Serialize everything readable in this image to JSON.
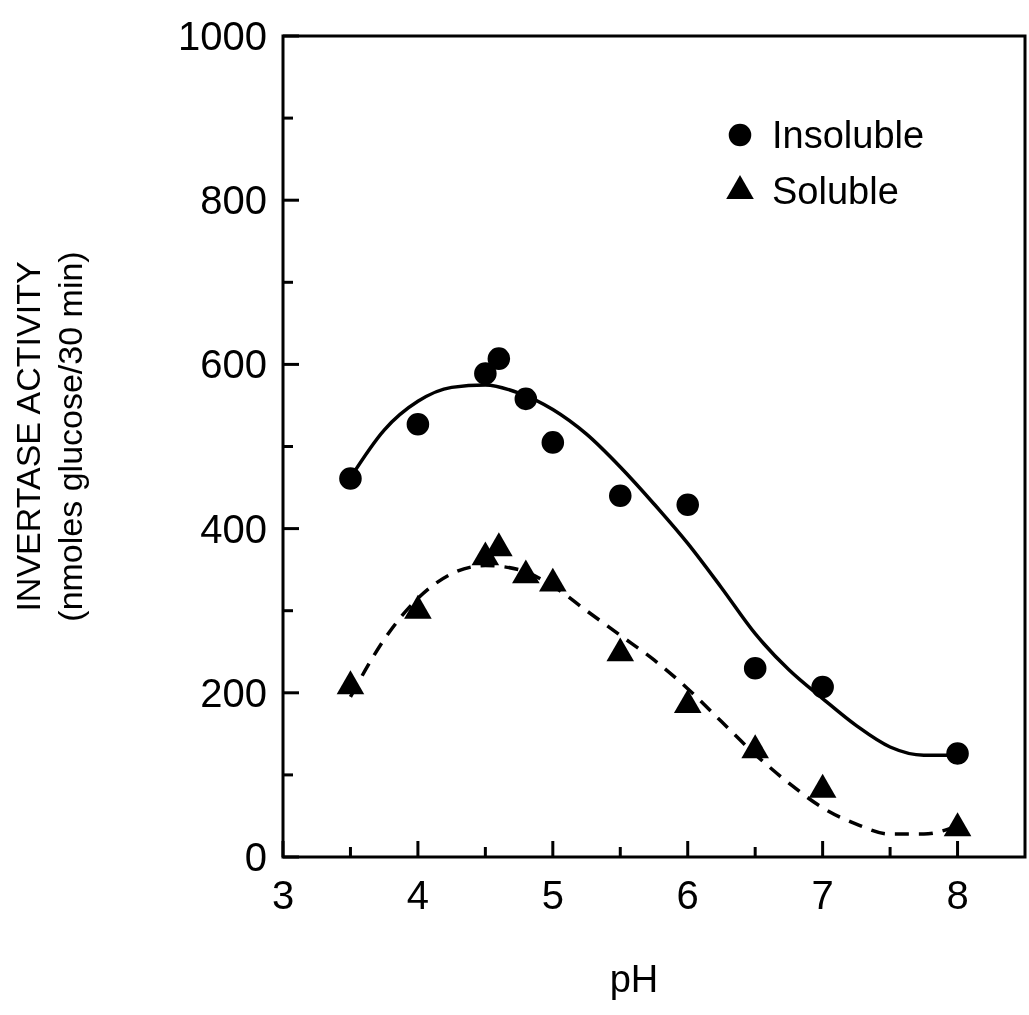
{
  "chart_data": {
    "type": "scatter",
    "xlabel": "pH",
    "ylabel": "INVERTASE ACTIVITY\n(nmoles glucose/30 min)",
    "xlim": [
      3,
      8.5
    ],
    "ylim": [
      0,
      1000
    ],
    "xticks": [
      3,
      {
        "value": 3.5,
        "label": null
      },
      4,
      {
        "value": 4.5,
        "label": null
      },
      5,
      {
        "value": 5.5,
        "label": null
      },
      6,
      {
        "value": 6.5,
        "label": null
      },
      7,
      {
        "value": 7.5,
        "label": null
      },
      8
    ],
    "yticks": [
      0,
      {
        "value": 100,
        "label": null
      },
      200,
      {
        "value": 300,
        "label": null
      },
      400,
      {
        "value": 500,
        "label": null
      },
      600,
      {
        "value": 700,
        "label": null
      },
      800,
      {
        "value": 900,
        "label": null
      },
      1000
    ],
    "grid": false,
    "legend": "top right",
    "series": [
      {
        "name": "Insoluble",
        "marker": "circle",
        "color": "#000000",
        "x": [
          3.5,
          4,
          4.5,
          4.6,
          4.8,
          5,
          5.5,
          6,
          6.5,
          7,
          8
        ],
        "values": [
          461,
          527,
          589,
          607,
          558,
          505,
          440,
          429,
          230,
          207,
          126
        ]
      },
      {
        "name": "Soluble",
        "marker": "triangle",
        "color": "#000000",
        "x": [
          3.5,
          4,
          4.5,
          4.6,
          4.8,
          5,
          5.5,
          6,
          6.5,
          7,
          8
        ],
        "values": [
          208,
          300,
          365,
          376,
          343,
          333,
          248,
          185,
          130,
          82,
          35
        ]
      },
      {
        "type": "line",
        "line_style": "solid",
        "color": "#000000",
        "x": [
          3.5,
          3.75,
          4,
          4.25,
          4.5,
          4.75,
          5,
          5.25,
          5.5,
          5.75,
          6,
          6.25,
          6.5,
          6.75,
          7,
          7.25,
          7.5,
          7.75,
          8
        ],
        "values": [
          462,
          520,
          555,
          572,
          575,
          565,
          545,
          515,
          475,
          430,
          382,
          328,
          272,
          228,
          193,
          160,
          134,
          124,
          124
        ]
      },
      {
        "type": "line",
        "line_style": "dashed",
        "color": "#000000",
        "x": [
          3.5,
          3.75,
          4,
          4.25,
          4.5,
          4.75,
          5,
          5.25,
          5.5,
          5.75,
          6,
          6.25,
          6.5,
          6.75,
          7,
          7.25,
          7.5,
          7.75,
          8
        ],
        "values": [
          195,
          265,
          315,
          345,
          355,
          350,
          330,
          300,
          270,
          240,
          205,
          165,
          125,
          90,
          60,
          40,
          28,
          28,
          38
        ]
      }
    ]
  }
}
